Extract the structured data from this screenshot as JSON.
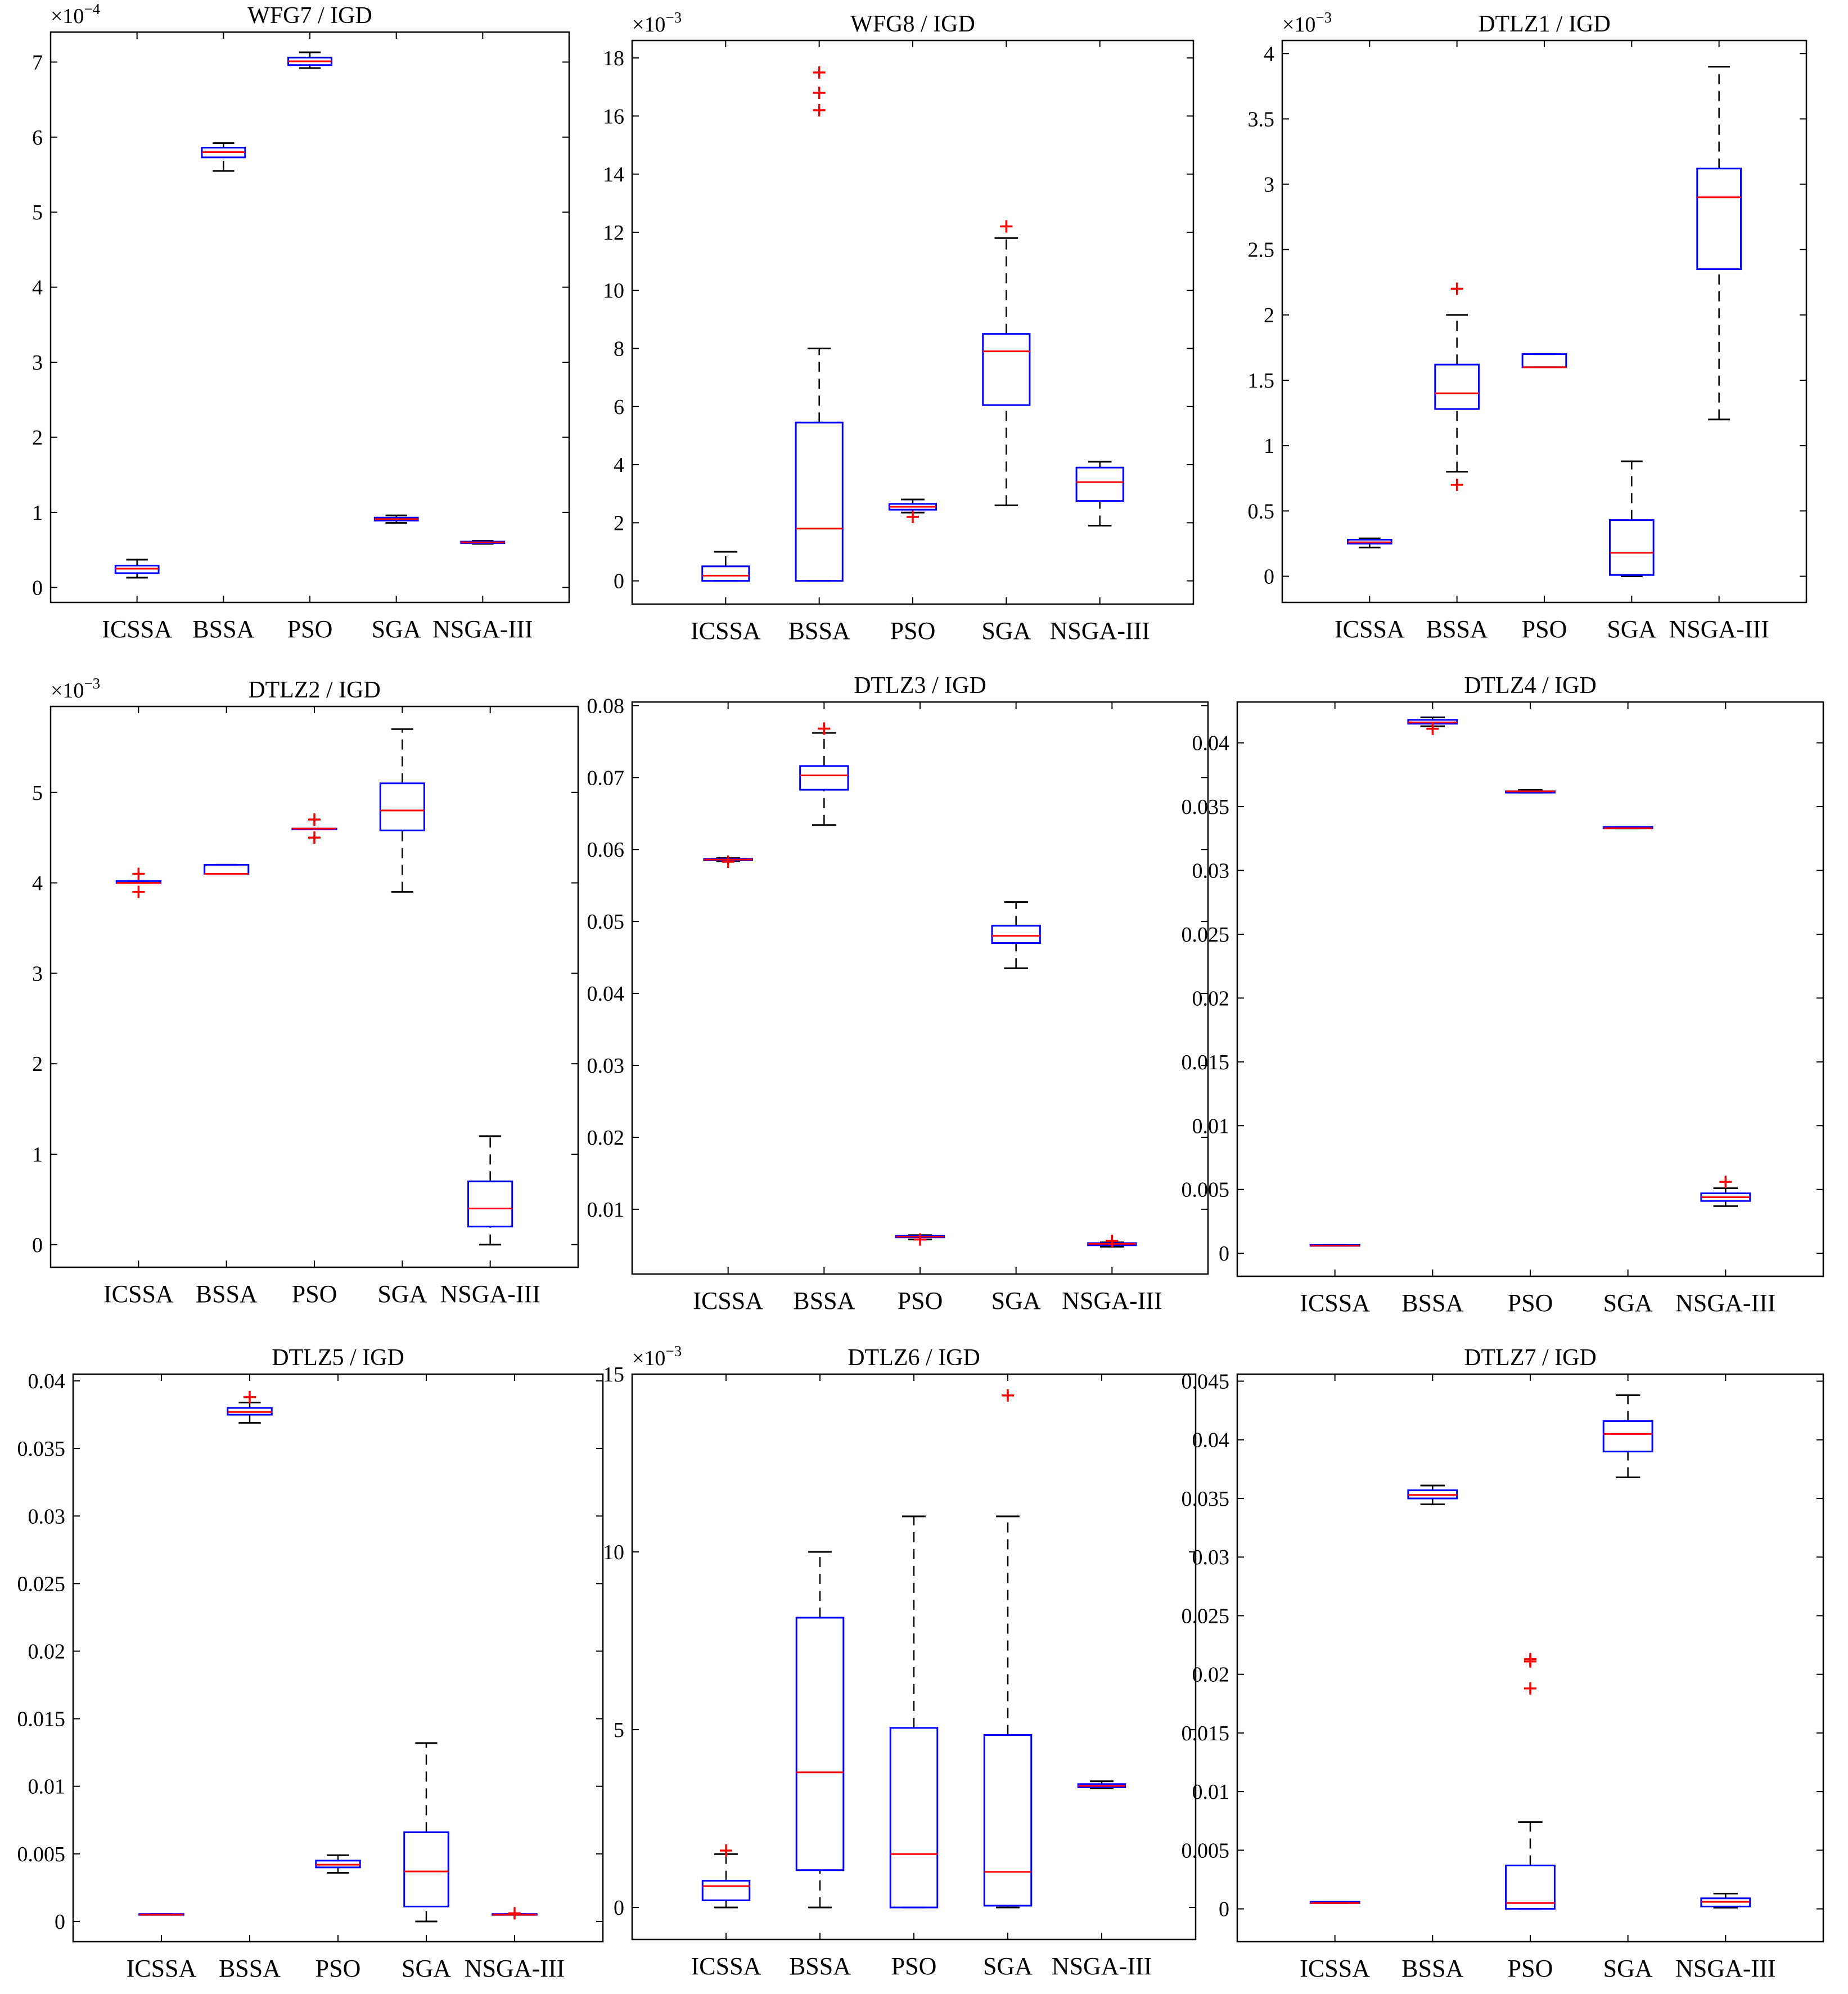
{
  "colors": {
    "box": "#0000ff",
    "median": "#ff0000",
    "whisker": "#000000",
    "outlier": "#ff0000",
    "axes": "#000000"
  },
  "chart_data": [
    {
      "type": "box",
      "title": "WFG7 / IGD",
      "categories": [
        "ICSSA",
        "BSSA",
        "PSO",
        "SGA",
        "NSGA-III"
      ],
      "multiplier_base": "×10",
      "multiplier_exp": "−4",
      "ylim": [
        -0.2,
        7.4
      ],
      "yticks": [
        0,
        1,
        2,
        3,
        4,
        5,
        6,
        7
      ],
      "ytick_labels": [
        "0",
        "1",
        "2",
        "3",
        "4",
        "5",
        "6",
        "7"
      ],
      "boxes": [
        {
          "lw": 0.13,
          "q1": 0.19,
          "med": 0.25,
          "q3": 0.29,
          "uw": 0.37,
          "outliers": []
        },
        {
          "lw": 5.55,
          "q1": 5.73,
          "med": 5.8,
          "q3": 5.86,
          "uw": 5.92,
          "outliers": []
        },
        {
          "lw": 6.92,
          "q1": 6.96,
          "med": 7.01,
          "q3": 7.06,
          "uw": 7.13,
          "outliers": []
        },
        {
          "lw": 0.86,
          "q1": 0.89,
          "med": 0.91,
          "q3": 0.93,
          "uw": 0.96,
          "outliers": []
        },
        {
          "lw": 0.58,
          "q1": 0.59,
          "med": 0.6,
          "q3": 0.61,
          "uw": 0.62,
          "outliers": []
        }
      ]
    },
    {
      "type": "box",
      "title": "WFG8 / IGD",
      "categories": [
        "ICSSA",
        "BSSA",
        "PSO",
        "SGA",
        "NSGA-III"
      ],
      "multiplier_base": "×10",
      "multiplier_exp": "−3",
      "ylim": [
        -0.8,
        18.6
      ],
      "yticks": [
        0,
        2,
        4,
        6,
        8,
        10,
        12,
        14,
        16,
        18
      ],
      "ytick_labels": [
        "0",
        "2",
        "4",
        "6",
        "8",
        "10",
        "12",
        "14",
        "16",
        "18"
      ],
      "boxes": [
        {
          "lw": 0.0,
          "q1": 0.0,
          "med": 0.18,
          "q3": 0.5,
          "uw": 1.0,
          "outliers": []
        },
        {
          "lw": 0.0,
          "q1": 0.0,
          "med": 1.8,
          "q3": 5.45,
          "uw": 8.0,
          "outliers": [
            16.2,
            16.8,
            17.5
          ]
        },
        {
          "lw": 2.35,
          "q1": 2.45,
          "med": 2.55,
          "q3": 2.65,
          "uw": 2.8,
          "outliers": [
            2.2
          ]
        },
        {
          "lw": 2.6,
          "q1": 6.05,
          "med": 7.9,
          "q3": 8.5,
          "uw": 11.8,
          "outliers": [
            12.2
          ]
        },
        {
          "lw": 1.9,
          "q1": 2.75,
          "med": 3.4,
          "q3": 3.9,
          "uw": 4.1,
          "outliers": []
        }
      ]
    },
    {
      "type": "box",
      "title": "DTLZ1 / IGD",
      "categories": [
        "ICSSA",
        "BSSA",
        "PSO",
        "SGA",
        "NSGA-III"
      ],
      "multiplier_base": "×10",
      "multiplier_exp": "−3",
      "ylim": [
        -0.2,
        4.1
      ],
      "yticks": [
        0,
        0.5,
        1,
        1.5,
        2,
        2.5,
        3,
        3.5,
        4
      ],
      "ytick_labels": [
        "0",
        "0.5",
        "1",
        "1.5",
        "2",
        "2.5",
        "3",
        "3.5",
        "4"
      ],
      "boxes": [
        {
          "lw": 0.22,
          "q1": 0.25,
          "med": 0.26,
          "q3": 0.28,
          "uw": 0.29,
          "outliers": []
        },
        {
          "lw": 0.8,
          "q1": 1.28,
          "med": 1.4,
          "q3": 1.62,
          "uw": 2.0,
          "outliers": [
            0.7,
            2.2
          ]
        },
        {
          "lw": 1.6,
          "q1": 1.6,
          "med": 1.6,
          "q3": 1.7,
          "uw": 1.7,
          "outliers": []
        },
        {
          "lw": 0.0,
          "q1": 0.01,
          "med": 0.18,
          "q3": 0.43,
          "uw": 0.88,
          "outliers": []
        },
        {
          "lw": 1.2,
          "q1": 2.35,
          "med": 2.9,
          "q3": 3.12,
          "uw": 3.9,
          "outliers": []
        }
      ]
    },
    {
      "type": "box",
      "title": "DTLZ2 / IGD",
      "categories": [
        "ICSSA",
        "BSSA",
        "PSO",
        "SGA",
        "NSGA-III"
      ],
      "multiplier_base": "×10",
      "multiplier_exp": "−3",
      "ylim": [
        -0.25,
        5.95
      ],
      "yticks": [
        0,
        1,
        2,
        3,
        4,
        5
      ],
      "ytick_labels": [
        "0",
        "1",
        "2",
        "3",
        "4",
        "5"
      ],
      "boxes": [
        {
          "lw": 4.0,
          "q1": 4.0,
          "med": 4.0,
          "q3": 4.02,
          "uw": 4.02,
          "outliers": [
            3.9,
            4.1
          ]
        },
        {
          "lw": 4.1,
          "q1": 4.1,
          "med": 4.1,
          "q3": 4.2,
          "uw": 4.2,
          "outliers": []
        },
        {
          "lw": 4.6,
          "q1": 4.6,
          "med": 4.6,
          "q3": 4.6,
          "uw": 4.6,
          "outliers": [
            4.5,
            4.7
          ]
        },
        {
          "lw": 3.9,
          "q1": 4.58,
          "med": 4.8,
          "q3": 5.1,
          "uw": 5.7,
          "outliers": []
        },
        {
          "lw": 0.0,
          "q1": 0.2,
          "med": 0.4,
          "q3": 0.7,
          "uw": 1.2,
          "outliers": []
        }
      ]
    },
    {
      "type": "box",
      "title": "DTLZ3 / IGD",
      "categories": [
        "ICSSA",
        "BSSA",
        "PSO",
        "SGA",
        "NSGA-III"
      ],
      "multiplier_base": "",
      "multiplier_exp": "",
      "ylim": [
        0.001,
        0.0805
      ],
      "yticks": [
        0.01,
        0.02,
        0.03,
        0.04,
        0.05,
        0.06,
        0.07,
        0.08
      ],
      "ytick_labels": [
        "0.01",
        "0.02",
        "0.03",
        "0.04",
        "0.05",
        "0.06",
        "0.07",
        "0.08"
      ],
      "boxes": [
        {
          "lw": 0.0584,
          "q1": 0.0585,
          "med": 0.0586,
          "q3": 0.0587,
          "uw": 0.0588,
          "outliers": [
            0.0583
          ]
        },
        {
          "lw": 0.0634,
          "q1": 0.0683,
          "med": 0.0703,
          "q3": 0.0716,
          "uw": 0.0762,
          "outliers": [
            0.0768
          ]
        },
        {
          "lw": 0.0058,
          "q1": 0.0061,
          "med": 0.0062,
          "q3": 0.0063,
          "uw": 0.0064,
          "outliers": [
            0.0058
          ]
        },
        {
          "lw": 0.0435,
          "q1": 0.047,
          "med": 0.048,
          "q3": 0.0494,
          "uw": 0.0527,
          "outliers": []
        },
        {
          "lw": 0.0048,
          "q1": 0.005,
          "med": 0.0052,
          "q3": 0.0053,
          "uw": 0.0054,
          "outliers": [
            0.0056
          ]
        }
      ]
    },
    {
      "type": "box",
      "title": "DTLZ4 / IGD",
      "categories": [
        "ICSSA",
        "BSSA",
        "PSO",
        "SGA",
        "NSGA-III"
      ],
      "multiplier_base": "",
      "multiplier_exp": "",
      "ylim": [
        -0.0018,
        0.0432
      ],
      "yticks": [
        0,
        0.005,
        0.01,
        0.015,
        0.02,
        0.025,
        0.03,
        0.035,
        0.04
      ],
      "ytick_labels": [
        "0",
        "0.005",
        "0.01",
        "0.015",
        "0.02",
        "0.025",
        "0.03",
        "0.035",
        "0.04"
      ],
      "boxes": [
        {
          "lw": 0.0006,
          "q1": 0.0006,
          "med": 0.0006,
          "q3": 0.00065,
          "uw": 0.00065,
          "outliers": []
        },
        {
          "lw": 0.0413,
          "q1": 0.0415,
          "med": 0.0416,
          "q3": 0.0418,
          "uw": 0.042,
          "outliers": [
            0.0411
          ]
        },
        {
          "lw": 0.0361,
          "q1": 0.0361,
          "med": 0.0362,
          "q3": 0.0362,
          "uw": 0.0363,
          "outliers": []
        },
        {
          "lw": 0.0333,
          "q1": 0.0333,
          "med": 0.0333,
          "q3": 0.0334,
          "uw": 0.0334,
          "outliers": []
        },
        {
          "lw": 0.0037,
          "q1": 0.0041,
          "med": 0.0044,
          "q3": 0.0047,
          "uw": 0.0051,
          "outliers": [
            0.0056
          ]
        }
      ]
    },
    {
      "type": "box",
      "title": "DTLZ5 / IGD",
      "categories": [
        "ICSSA",
        "BSSA",
        "PSO",
        "SGA",
        "NSGA-III"
      ],
      "multiplier_base": "",
      "multiplier_exp": "",
      "ylim": [
        -0.0015,
        0.0405
      ],
      "yticks": [
        0,
        0.005,
        0.01,
        0.015,
        0.02,
        0.025,
        0.03,
        0.035,
        0.04
      ],
      "ytick_labels": [
        "0",
        "0.005",
        "0.01",
        "0.015",
        "0.02",
        "0.025",
        "0.03",
        "0.035",
        "0.04"
      ],
      "boxes": [
        {
          "lw": 0.0005,
          "q1": 0.0005,
          "med": 0.0005,
          "q3": 0.00055,
          "uw": 0.00055,
          "outliers": []
        },
        {
          "lw": 0.0369,
          "q1": 0.0375,
          "med": 0.0377,
          "q3": 0.038,
          "uw": 0.0384,
          "outliers": [
            0.0388
          ]
        },
        {
          "lw": 0.0036,
          "q1": 0.004,
          "med": 0.0042,
          "q3": 0.0045,
          "uw": 0.0049,
          "outliers": []
        },
        {
          "lw": 0.0,
          "q1": 0.0011,
          "med": 0.0037,
          "q3": 0.0066,
          "uw": 0.0132,
          "outliers": []
        },
        {
          "lw": 0.0005,
          "q1": 0.0005,
          "med": 0.0005,
          "q3": 0.00055,
          "uw": 0.00055,
          "outliers": [
            0.0006
          ]
        }
      ]
    },
    {
      "type": "box",
      "title": "DTLZ6 / IGD",
      "categories": [
        "ICSSA",
        "BSSA",
        "PSO",
        "SGA",
        "NSGA-III"
      ],
      "multiplier_base": "×10",
      "multiplier_exp": "−3",
      "ylim": [
        -0.9,
        15.0
      ],
      "yticks": [
        0,
        5,
        10,
        15
      ],
      "ytick_labels": [
        "0",
        "5",
        "10",
        "15"
      ],
      "boxes": [
        {
          "lw": 0.0,
          "q1": 0.2,
          "med": 0.6,
          "q3": 0.75,
          "uw": 1.5,
          "outliers": [
            1.6
          ]
        },
        {
          "lw": 0.0,
          "q1": 1.05,
          "med": 3.8,
          "q3": 8.15,
          "uw": 10.0,
          "outliers": []
        },
        {
          "lw": 0.0,
          "q1": 0.0,
          "med": 1.5,
          "q3": 5.05,
          "uw": 11.0,
          "outliers": []
        },
        {
          "lw": 0.0,
          "q1": 0.05,
          "med": 1.0,
          "q3": 4.85,
          "uw": 11.0,
          "outliers": [
            14.4
          ]
        },
        {
          "lw": 3.35,
          "q1": 3.38,
          "med": 3.42,
          "q3": 3.47,
          "uw": 3.55,
          "outliers": []
        }
      ]
    },
    {
      "type": "box",
      "title": "DTLZ7 / IGD",
      "categories": [
        "ICSSA",
        "BSSA",
        "PSO",
        "SGA",
        "NSGA-III"
      ],
      "multiplier_base": "",
      "multiplier_exp": "",
      "ylim": [
        -0.0028,
        0.0456
      ],
      "yticks": [
        0,
        0.005,
        0.01,
        0.015,
        0.02,
        0.025,
        0.03,
        0.035,
        0.04,
        0.045
      ],
      "ytick_labels": [
        "0",
        "0.005",
        "0.01",
        "0.015",
        "0.02",
        "0.025",
        "0.03",
        "0.035",
        "0.04",
        "0.045"
      ],
      "boxes": [
        {
          "lw": 0.0005,
          "q1": 0.0005,
          "med": 0.0005,
          "q3": 0.0006,
          "uw": 0.0006,
          "outliers": []
        },
        {
          "lw": 0.0345,
          "q1": 0.035,
          "med": 0.0353,
          "q3": 0.0357,
          "uw": 0.0361,
          "outliers": []
        },
        {
          "lw": 0.0,
          "q1": 0.0,
          "med": 0.0005,
          "q3": 0.0037,
          "uw": 0.0074,
          "outliers": [
            0.0188,
            0.0211,
            0.0213
          ]
        },
        {
          "lw": 0.0368,
          "q1": 0.039,
          "med": 0.0405,
          "q3": 0.0416,
          "uw": 0.0438,
          "outliers": []
        },
        {
          "lw": 0.0001,
          "q1": 0.0002,
          "med": 0.0006,
          "q3": 0.0009,
          "uw": 0.0013,
          "outliers": []
        }
      ]
    }
  ]
}
